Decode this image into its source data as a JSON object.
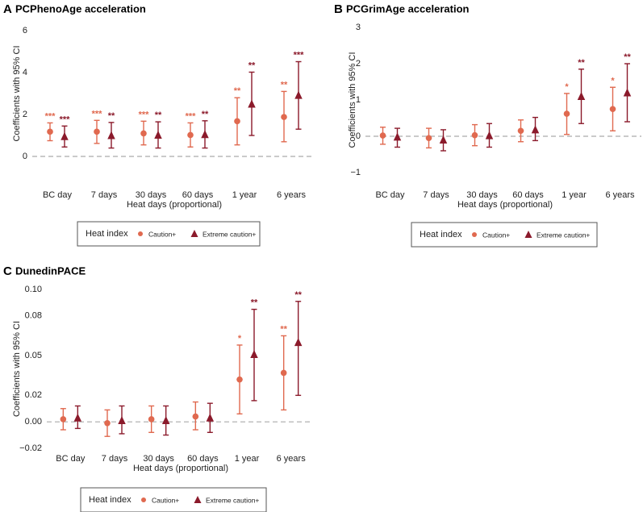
{
  "colors": {
    "caution": "#e0694f",
    "extreme": "#8b1a2b",
    "zero_line": "#aaaaaa"
  },
  "chart_data": [
    {
      "type": "scatter",
      "panel": "A",
      "title": "PCPhenoAge acceleration",
      "xlabel": "Heat days (proportional)",
      "ylabel": "Coefficients with 95% CI",
      "ylim": [
        0,
        6
      ],
      "yticks": [
        0,
        2,
        4,
        6
      ],
      "ytick_labels": [
        "0",
        "2",
        "4",
        "6"
      ],
      "categories": [
        "BC day",
        "7 days",
        "30 days",
        "60 days",
        "1 year",
        "6 years"
      ],
      "legend": {
        "title": "Heat index",
        "placement": "bottom"
      },
      "series": [
        {
          "name": "Caution+",
          "marker": "circle",
          "values": [
            1.18,
            1.18,
            1.1,
            1.02,
            1.68,
            1.88
          ],
          "lower": [
            0.75,
            0.62,
            0.55,
            0.45,
            0.55,
            0.7
          ],
          "upper": [
            1.6,
            1.72,
            1.68,
            1.6,
            2.8,
            3.1
          ],
          "sig": [
            "***",
            "***",
            "***",
            "***",
            "**",
            "**"
          ]
        },
        {
          "name": "Extreme caution+",
          "marker": "triangle",
          "values": [
            0.95,
            1.0,
            1.02,
            1.05,
            2.5,
            2.92
          ],
          "lower": [
            0.45,
            0.4,
            0.4,
            0.4,
            1.0,
            1.3
          ],
          "upper": [
            1.45,
            1.62,
            1.65,
            1.7,
            4.02,
            4.52
          ],
          "sig": [
            "***",
            "**",
            "**",
            "**",
            "**",
            "***"
          ]
        }
      ]
    },
    {
      "type": "scatter",
      "panel": "B",
      "title": "PCGrimAge acceleration",
      "xlabel": "Heat days (proportional)",
      "ylabel": "Coefficients with 95% CI",
      "ylim": [
        -1,
        3
      ],
      "yticks": [
        -1,
        0,
        1,
        2,
        3
      ],
      "ytick_labels": [
        "−1",
        "0",
        "1",
        "2",
        "3"
      ],
      "categories": [
        "BC day",
        "7 days",
        "30 days",
        "60 days",
        "1 year",
        "6 years"
      ],
      "legend": {
        "title": "Heat index",
        "placement": "bottom"
      },
      "series": [
        {
          "name": "Caution+",
          "marker": "circle",
          "values": [
            0.02,
            -0.05,
            0.03,
            0.15,
            0.62,
            0.75
          ],
          "lower": [
            -0.22,
            -0.32,
            -0.26,
            -0.15,
            0.05,
            0.15
          ],
          "upper": [
            0.25,
            0.22,
            0.32,
            0.45,
            1.18,
            1.35
          ],
          "sig": [
            "",
            "",
            "",
            "",
            "*",
            "*"
          ]
        },
        {
          "name": "Extreme caution+",
          "marker": "triangle",
          "values": [
            -0.02,
            -0.1,
            0.02,
            0.18,
            1.1,
            1.2
          ],
          "lower": [
            -0.3,
            -0.4,
            -0.3,
            -0.12,
            0.35,
            0.4
          ],
          "upper": [
            0.22,
            0.18,
            0.35,
            0.52,
            1.85,
            2.0
          ],
          "sig": [
            "",
            "",
            "",
            "",
            "**",
            "**"
          ]
        }
      ]
    },
    {
      "type": "scatter",
      "panel": "C",
      "title": "DunedinPACE",
      "xlabel": "Heat days (proportional)",
      "ylabel": "Coefficients with 95% CI",
      "ylim": [
        -0.02,
        0.1
      ],
      "yticks": [
        -0.02,
        0.0,
        0.02,
        0.05,
        0.08,
        0.1
      ],
      "ytick_labels": [
        "−0.02",
        "0.00",
        "0.02",
        "0.05",
        "0.08",
        "0.10"
      ],
      "categories": [
        "BC day",
        "7 days",
        "30 days",
        "60 days",
        "1 year",
        "6 years"
      ],
      "legend": {
        "title": "Heat index",
        "placement": "bottom"
      },
      "series": [
        {
          "name": "Caution+",
          "marker": "circle",
          "values": [
            0.002,
            -0.001,
            0.002,
            0.004,
            0.032,
            0.037
          ],
          "lower": [
            -0.006,
            -0.011,
            -0.008,
            -0.006,
            0.006,
            0.009
          ],
          "upper": [
            0.01,
            0.009,
            0.012,
            0.015,
            0.058,
            0.065
          ],
          "sig": [
            "",
            "",
            "",
            "",
            "*",
            "**"
          ]
        },
        {
          "name": "Extreme caution+",
          "marker": "triangle",
          "values": [
            0.003,
            0.001,
            0.001,
            0.003,
            0.051,
            0.06
          ],
          "lower": [
            -0.005,
            -0.009,
            -0.01,
            -0.008,
            0.016,
            0.02
          ],
          "upper": [
            0.012,
            0.012,
            0.012,
            0.014,
            0.085,
            0.091
          ],
          "sig": [
            "",
            "",
            "",
            "",
            "**",
            "**"
          ]
        }
      ]
    }
  ]
}
